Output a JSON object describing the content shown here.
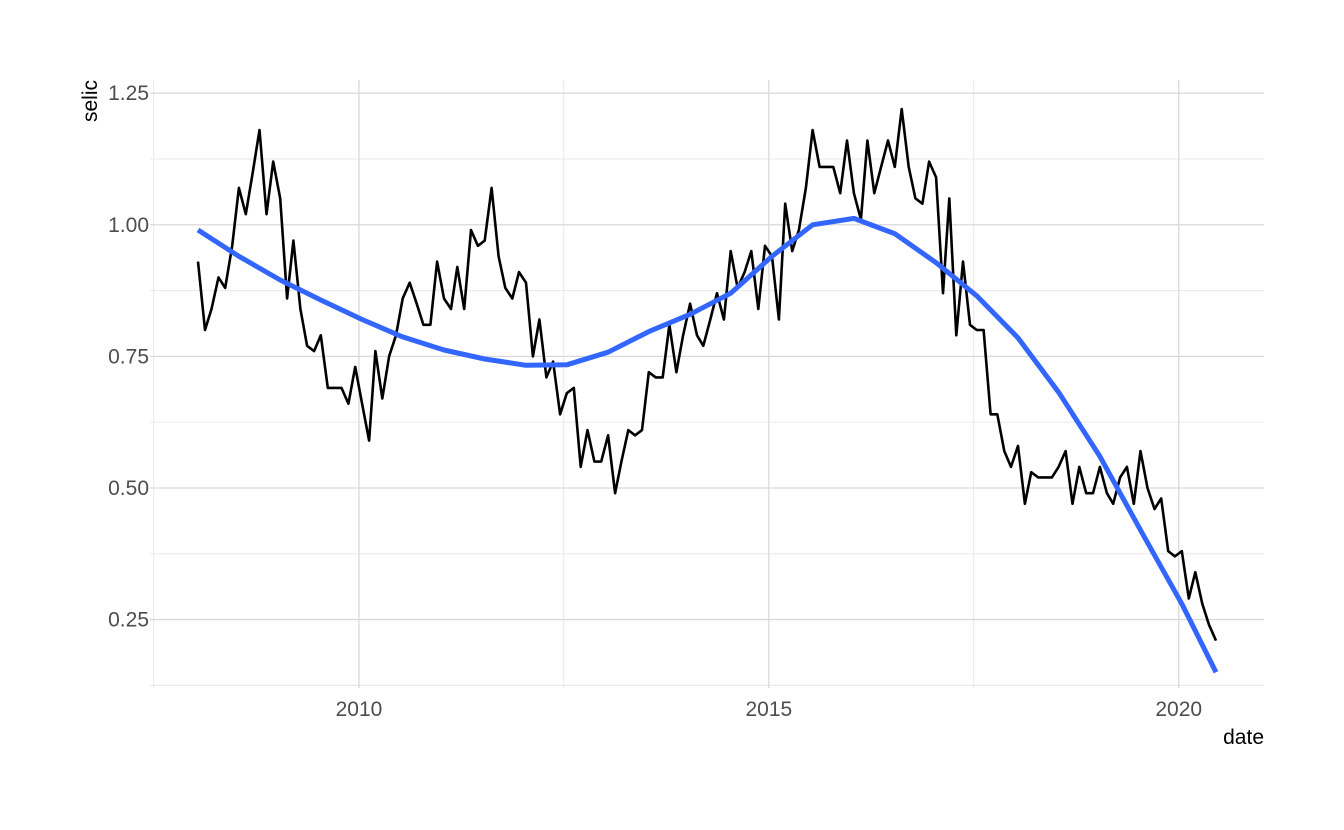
{
  "chart_data": {
    "type": "line",
    "title": "",
    "xlabel": "date",
    "ylabel": "selic",
    "x_scale": "date",
    "xlim": [
      "2007-06-15",
      "2021-01-15"
    ],
    "ylim": [
      0.12,
      1.275
    ],
    "x_ticks": [
      {
        "value": "2010-01-01",
        "label": "2010"
      },
      {
        "value": "2015-01-01",
        "label": "2015"
      },
      {
        "value": "2020-01-01",
        "label": "2020"
      }
    ],
    "x_minor_ticks": [
      "2007-07-01",
      "2012-07-01",
      "2017-07-01"
    ],
    "y_ticks": [
      {
        "value": 0.25,
        "label": "0.25"
      },
      {
        "value": 0.5,
        "label": "0.50"
      },
      {
        "value": 0.75,
        "label": "0.75"
      },
      {
        "value": 1.0,
        "label": "1.00"
      },
      {
        "value": 1.25,
        "label": "1.25"
      }
    ],
    "y_minor_ticks": [
      0.125,
      0.375,
      0.625,
      0.875,
      1.125
    ],
    "grid": true,
    "legend": "none",
    "series": [
      {
        "color": "#000000",
        "x": [
          "2008-01",
          "2008-02",
          "2008-03",
          "2008-04",
          "2008-05",
          "2008-06",
          "2008-07",
          "2008-08",
          "2008-09",
          "2008-10",
          "2008-11",
          "2008-12",
          "2009-01",
          "2009-02",
          "2009-03",
          "2009-04",
          "2009-05",
          "2009-06",
          "2009-07",
          "2009-08",
          "2009-09",
          "2009-10",
          "2009-11",
          "2009-12",
          "2010-01",
          "2010-02",
          "2010-03",
          "2010-04",
          "2010-05",
          "2010-06",
          "2010-07",
          "2010-08",
          "2010-09",
          "2010-10",
          "2010-11",
          "2010-12",
          "2011-01",
          "2011-02",
          "2011-03",
          "2011-04",
          "2011-05",
          "2011-06",
          "2011-07",
          "2011-08",
          "2011-09",
          "2011-10",
          "2011-11",
          "2011-12",
          "2012-01",
          "2012-02",
          "2012-03",
          "2012-04",
          "2012-05",
          "2012-06",
          "2012-07",
          "2012-08",
          "2012-09",
          "2012-10",
          "2012-11",
          "2012-12",
          "2013-01",
          "2013-02",
          "2013-03",
          "2013-04",
          "2013-05",
          "2013-06",
          "2013-07",
          "2013-08",
          "2013-09",
          "2013-10",
          "2013-11",
          "2013-12",
          "2014-01",
          "2014-02",
          "2014-03",
          "2014-04",
          "2014-05",
          "2014-06",
          "2014-07",
          "2014-08",
          "2014-09",
          "2014-10",
          "2014-11",
          "2014-12",
          "2015-01",
          "2015-02",
          "2015-03",
          "2015-04",
          "2015-05",
          "2015-06",
          "2015-07",
          "2015-08",
          "2015-09",
          "2015-10",
          "2015-11",
          "2015-12",
          "2016-01",
          "2016-02",
          "2016-03",
          "2016-04",
          "2016-05",
          "2016-06",
          "2016-07",
          "2016-08",
          "2016-09",
          "2016-10",
          "2016-11",
          "2016-12",
          "2017-01",
          "2017-02",
          "2017-03",
          "2017-04",
          "2017-05",
          "2017-06",
          "2017-07",
          "2017-08",
          "2017-09",
          "2017-10",
          "2017-11",
          "2017-12",
          "2018-01",
          "2018-02",
          "2018-03",
          "2018-04",
          "2018-05",
          "2018-06",
          "2018-07",
          "2018-08",
          "2018-09",
          "2018-10",
          "2018-11",
          "2018-12",
          "2019-01",
          "2019-02",
          "2019-03",
          "2019-04",
          "2019-05",
          "2019-06",
          "2019-07",
          "2019-08",
          "2019-09",
          "2019-10",
          "2019-11",
          "2019-12",
          "2020-01",
          "2020-02",
          "2020-03",
          "2020-04",
          "2020-05",
          "2020-06"
        ],
        "y": [
          0.93,
          0.8,
          0.84,
          0.9,
          0.88,
          0.96,
          1.07,
          1.02,
          1.1,
          1.18,
          1.02,
          1.12,
          1.05,
          0.86,
          0.97,
          0.84,
          0.77,
          0.76,
          0.79,
          0.69,
          0.69,
          0.69,
          0.66,
          0.73,
          0.66,
          0.59,
          0.76,
          0.67,
          0.75,
          0.79,
          0.86,
          0.89,
          0.85,
          0.81,
          0.81,
          0.93,
          0.86,
          0.84,
          0.92,
          0.84,
          0.99,
          0.96,
          0.97,
          1.07,
          0.94,
          0.88,
          0.86,
          0.91,
          0.89,
          0.75,
          0.82,
          0.71,
          0.74,
          0.64,
          0.68,
          0.69,
          0.54,
          0.61,
          0.55,
          0.55,
          0.6,
          0.49,
          0.55,
          0.61,
          0.6,
          0.61,
          0.72,
          0.71,
          0.71,
          0.81,
          0.72,
          0.79,
          0.85,
          0.79,
          0.77,
          0.82,
          0.87,
          0.82,
          0.95,
          0.88,
          0.91,
          0.95,
          0.84,
          0.96,
          0.94,
          0.82,
          1.04,
          0.95,
          0.99,
          1.07,
          1.18,
          1.11,
          1.11,
          1.11,
          1.06,
          1.16,
          1.06,
          1.01,
          1.16,
          1.06,
          1.11,
          1.16,
          1.11,
          1.22,
          1.11,
          1.05,
          1.04,
          1.12,
          1.09,
          0.87,
          1.05,
          0.79,
          0.93,
          0.81,
          0.8,
          0.8,
          0.64,
          0.64,
          0.57,
          0.54,
          0.58,
          0.47,
          0.53,
          0.52,
          0.52,
          0.52,
          0.54,
          0.57,
          0.47,
          0.54,
          0.49,
          0.49,
          0.54,
          0.49,
          0.47,
          0.52,
          0.54,
          0.47,
          0.57,
          0.5,
          0.46,
          0.48,
          0.38,
          0.37,
          0.38,
          0.29,
          0.34,
          0.28,
          0.24,
          0.21
        ]
      },
      {
        "color": "#3366ff",
        "x": [
          "2008-01",
          "2008-07",
          "2009-01",
          "2009-07",
          "2010-01",
          "2010-07",
          "2011-01",
          "2011-07",
          "2012-01",
          "2012-07",
          "2013-01",
          "2013-07",
          "2014-01",
          "2014-07",
          "2015-01",
          "2015-07",
          "2016-01",
          "2016-07",
          "2017-01",
          "2017-07",
          "2018-01",
          "2018-07",
          "2019-01",
          "2019-07",
          "2020-01",
          "2020-06"
        ],
        "y": [
          0.99,
          0.94,
          0.895,
          0.857,
          0.82,
          0.787,
          0.762,
          0.745,
          0.733,
          0.734,
          0.758,
          0.797,
          0.83,
          0.87,
          0.94,
          1.0,
          1.012,
          0.983,
          0.928,
          0.865,
          0.785,
          0.682,
          0.56,
          0.42,
          0.28,
          0.15
        ]
      }
    ]
  }
}
